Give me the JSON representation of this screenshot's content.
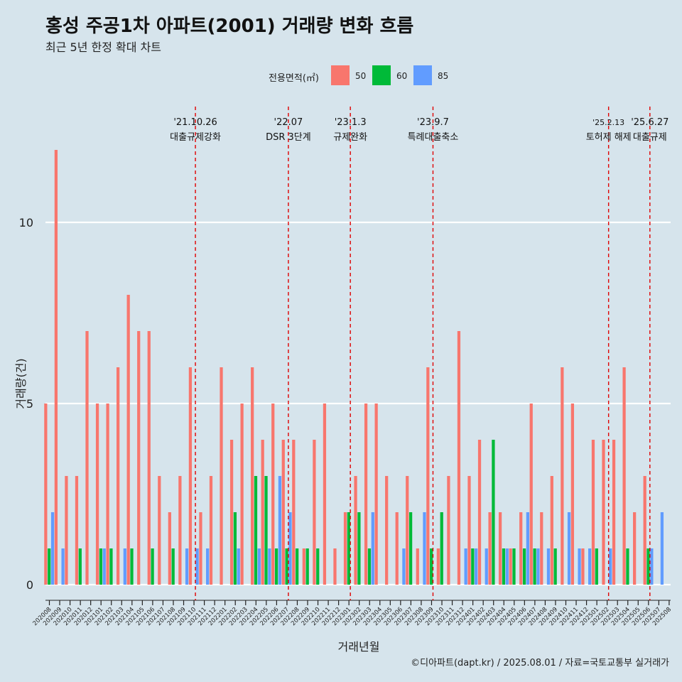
{
  "title": "홍성 주공1차 아파트(2001) 거래량 변화 흐름",
  "subtitle": "최근 5년 한정 확대 차트",
  "caption": "©디아파트(dapt.kr) / 2025.08.01 / 자료=국토교통부 실거래가",
  "legend": {
    "title": "전용면적(㎡)",
    "items": [
      {
        "label": "50",
        "color": "#f8766d"
      },
      {
        "label": "60",
        "color": "#00ba38"
      },
      {
        "label": "85",
        "color": "#619cff"
      }
    ]
  },
  "chart_data": {
    "type": "bar",
    "xlabel": "거래년월",
    "ylabel": "거래량(건)",
    "ylim": [
      0,
      12
    ],
    "yticks": [
      0,
      5,
      10
    ],
    "grid": true,
    "legend_position": "top",
    "categories": [
      "202008",
      "202009",
      "202010",
      "202011",
      "202012",
      "202101",
      "202102",
      "202103",
      "202104",
      "202105",
      "202106",
      "202107",
      "202108",
      "202109",
      "202110",
      "202111",
      "202112",
      "202201",
      "202202",
      "202203",
      "202204",
      "202205",
      "202206",
      "202207",
      "202208",
      "202209",
      "202210",
      "202211",
      "202212",
      "202301",
      "202302",
      "202303",
      "202304",
      "202305",
      "202306",
      "202307",
      "202308",
      "202309",
      "202310",
      "202311",
      "202312",
      "202401",
      "202402",
      "202403",
      "202404",
      "202405",
      "202406",
      "202407",
      "202408",
      "202409",
      "202410",
      "202411",
      "202412",
      "202501",
      "202502",
      "202503",
      "202504",
      "202505",
      "202506",
      "202507",
      "202508"
    ],
    "series": [
      {
        "name": "50",
        "color": "#f8766d",
        "values": [
          5,
          12,
          3,
          3,
          7,
          5,
          5,
          6,
          8,
          7,
          7,
          3,
          2,
          3,
          6,
          2,
          3,
          6,
          4,
          5,
          6,
          4,
          5,
          4,
          4,
          1,
          4,
          5,
          1,
          2,
          3,
          5,
          5,
          3,
          2,
          3,
          1,
          6,
          1,
          3,
          7,
          3,
          4,
          2,
          2,
          1,
          2,
          5,
          2,
          3,
          6,
          5,
          1,
          4,
          4,
          4,
          6,
          2,
          3,
          0,
          0
        ]
      },
      {
        "name": "60",
        "color": "#00ba38",
        "values": [
          1,
          0,
          0,
          1,
          0,
          1,
          1,
          0,
          1,
          0,
          1,
          0,
          1,
          0,
          0,
          0,
          0,
          0,
          2,
          0,
          3,
          3,
          1,
          1,
          1,
          1,
          1,
          0,
          0,
          2,
          2,
          1,
          0,
          0,
          0,
          2,
          0,
          1,
          2,
          0,
          0,
          1,
          0,
          4,
          1,
          1,
          1,
          1,
          0,
          1,
          0,
          0,
          0,
          1,
          0,
          0,
          1,
          0,
          1,
          0,
          0
        ]
      },
      {
        "name": "85",
        "color": "#619cff",
        "values": [
          2,
          1,
          0,
          0,
          0,
          1,
          0,
          1,
          0,
          0,
          0,
          0,
          0,
          1,
          1,
          1,
          0,
          0,
          1,
          0,
          1,
          1,
          3,
          2,
          0,
          0,
          0,
          0,
          0,
          0,
          0,
          2,
          0,
          0,
          1,
          0,
          2,
          0,
          0,
          0,
          1,
          1,
          1,
          0,
          1,
          0,
          2,
          1,
          1,
          0,
          2,
          1,
          1,
          0,
          1,
          0,
          0,
          0,
          1,
          2,
          0
        ]
      }
    ],
    "annotations": [
      {
        "date": "'21.10.26",
        "text": "대출규제강화",
        "x": "202110"
      },
      {
        "date": "'22.07",
        "text": "DSR 3단계",
        "x": "202207"
      },
      {
        "date": "'23.1.3",
        "text": "규제완화",
        "x": "202301"
      },
      {
        "date": "'23.9.7",
        "text": "특례대출축소",
        "x": "202309"
      },
      {
        "date": "'25.2.13",
        "text": "토허제 해제",
        "x": "202502"
      },
      {
        "date": "'25.6.27",
        "text": "대출규제",
        "x": "202506"
      }
    ]
  }
}
